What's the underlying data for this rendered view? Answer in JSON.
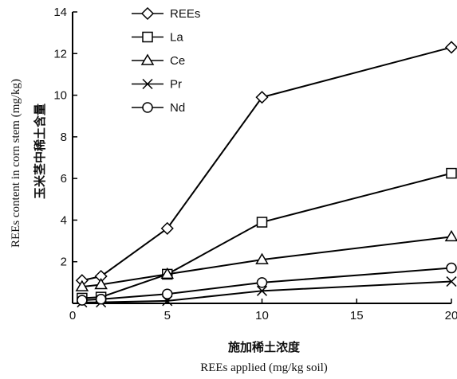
{
  "chart_data": {
    "type": "line",
    "xlabel": "REEs applied (mg/kg soil)",
    "xlabel_zh": "施加稀土浓度",
    "ylabel": "REEs content in corn stem (mg/kg)",
    "ylabel_zh": "玉米茎中稀土含量",
    "xlim": [
      0,
      20
    ],
    "ylim": [
      0,
      14
    ],
    "xticks": [
      0,
      5,
      10,
      15,
      20
    ],
    "yticks": [
      2,
      4,
      6,
      8,
      10,
      12,
      14
    ],
    "legend_position": "top-left",
    "grid": false,
    "series": [
      {
        "name": "REEs",
        "marker": "diamond",
        "x": [
          0.5,
          1.5,
          5,
          10,
          20
        ],
        "y": [
          1.1,
          1.3,
          3.6,
          9.9,
          12.3
        ]
      },
      {
        "name": "La",
        "marker": "square",
        "x": [
          0.5,
          1.5,
          5,
          10,
          20
        ],
        "y": [
          0.25,
          0.3,
          1.4,
          3.9,
          6.25
        ]
      },
      {
        "name": "Ce",
        "marker": "triangle",
        "x": [
          0.5,
          1.5,
          5,
          10,
          20
        ],
        "y": [
          0.8,
          0.9,
          1.4,
          2.1,
          3.2
        ]
      },
      {
        "name": "Pr",
        "marker": "cross",
        "x": [
          0.5,
          1.5,
          5,
          10,
          20
        ],
        "y": [
          0.05,
          0.05,
          0.12,
          0.6,
          1.05
        ]
      },
      {
        "name": "Nd",
        "marker": "circle",
        "x": [
          0.5,
          1.5,
          5,
          10,
          20
        ],
        "y": [
          0.15,
          0.2,
          0.45,
          1.0,
          1.7
        ]
      }
    ]
  }
}
